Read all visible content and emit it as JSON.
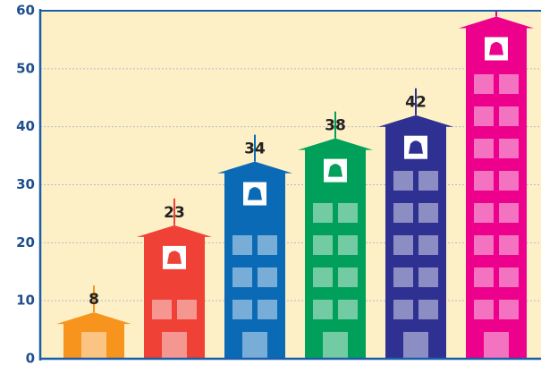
{
  "chart_data": {
    "type": "bar",
    "values": [
      8,
      23,
      34,
      38,
      42,
      59
    ],
    "colors": [
      "#f7941d",
      "#ef4136",
      "#0a6ab6",
      "#00a05a",
      "#2e3192",
      "#ec008c"
    ],
    "ylim": [
      0,
      60
    ],
    "yticks": [
      0,
      10,
      20,
      30,
      40,
      50,
      60
    ],
    "grid": true
  }
}
